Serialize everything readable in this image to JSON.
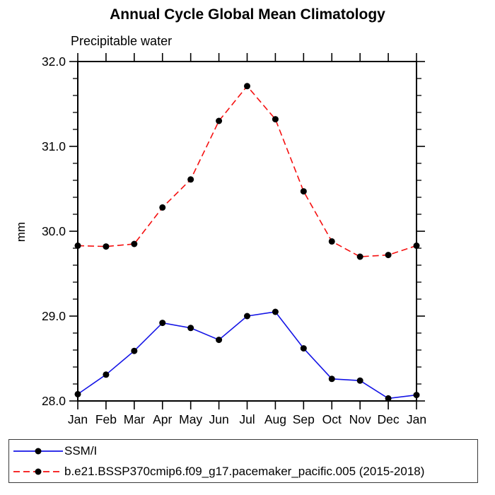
{
  "chart_data": {
    "type": "line",
    "title": "Annual Cycle Global Mean Climatology",
    "subtitle": "Precipitable water",
    "ylabel": "mm",
    "xlabel": "",
    "categories": [
      "Jan",
      "Feb",
      "Mar",
      "Apr",
      "May",
      "Jun",
      "Jul",
      "Aug",
      "Sep",
      "Oct",
      "Nov",
      "Dec",
      "Jan"
    ],
    "ylim": [
      28.0,
      32.0
    ],
    "y_major_ticks": [
      28.0,
      29.0,
      30.0,
      31.0,
      32.0
    ],
    "y_tick_labels": [
      "28.0",
      "29.0",
      "30.0",
      "31.0",
      "32.0"
    ],
    "y_minor_step": 0.2,
    "grid": false,
    "legend_position": "bottom",
    "marker_color": "#000000",
    "axis_color": "#000000",
    "series": [
      {
        "name": "SSM/I",
        "color": "#1414e6",
        "line_style": "solid",
        "values": [
          28.08,
          28.31,
          28.59,
          28.92,
          28.86,
          28.72,
          29.0,
          29.05,
          28.62,
          28.26,
          28.24,
          28.03,
          28.07
        ]
      },
      {
        "name": "b.e21.BSSP370cmip6.f09_g17.pacemaker_pacific.005 (2015-2018)",
        "color": "#f50f0f",
        "line_style": "dashed",
        "values": [
          29.83,
          29.82,
          29.85,
          30.28,
          30.61,
          31.3,
          31.71,
          31.32,
          30.47,
          29.88,
          29.7,
          29.72,
          29.83
        ]
      }
    ]
  }
}
